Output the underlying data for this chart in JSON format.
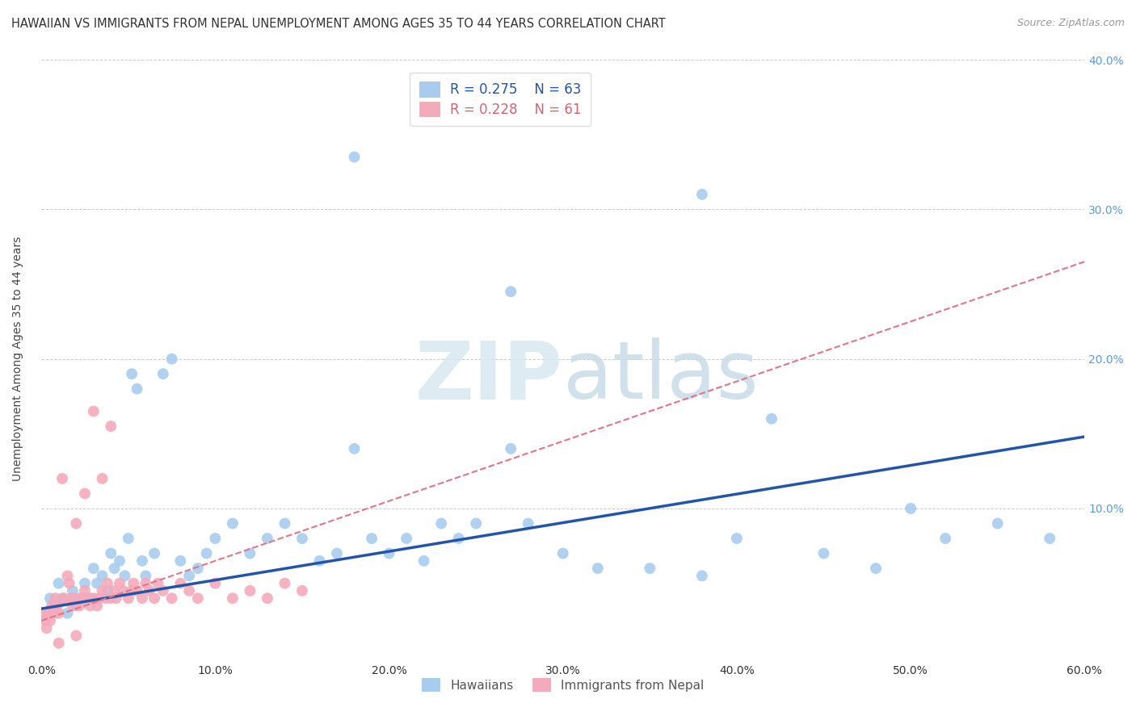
{
  "title": "HAWAIIAN VS IMMIGRANTS FROM NEPAL UNEMPLOYMENT AMONG AGES 35 TO 44 YEARS CORRELATION CHART",
  "source": "Source: ZipAtlas.com",
  "ylabel": "Unemployment Among Ages 35 to 44 years",
  "xlim": [
    0.0,
    0.6
  ],
  "ylim": [
    0.0,
    0.4
  ],
  "blue_color": "#A8CCEE",
  "pink_color": "#F4AABB",
  "blue_line_color": "#2255AA",
  "pink_line_color": "#DD7788",
  "legend_R_blue": "R = 0.275",
  "legend_N_blue": "N = 63",
  "legend_R_pink": "R = 0.228",
  "legend_N_pink": "N = 61",
  "legend_label_blue": "Hawaiians",
  "legend_label_pink": "Immigrants from Nepal",
  "watermark_zip": "ZIP",
  "watermark_atlas": "atlas",
  "background_color": "#FFFFFF",
  "grid_color": "#CCCCCC",
  "right_tick_color": "#5B9BD5",
  "blue_line_x0": 0.0,
  "blue_line_x1": 0.6,
  "blue_line_y0": 0.033,
  "blue_line_y1": 0.148,
  "pink_line_x0": 0.0,
  "pink_line_x1": 0.6,
  "pink_line_y0": 0.025,
  "pink_line_y1": 0.265,
  "hawaiians_x": [
    0.005,
    0.008,
    0.01,
    0.012,
    0.015,
    0.018,
    0.02,
    0.022,
    0.025,
    0.028,
    0.03,
    0.032,
    0.035,
    0.038,
    0.04,
    0.042,
    0.045,
    0.048,
    0.05,
    0.052,
    0.055,
    0.058,
    0.06,
    0.065,
    0.07,
    0.075,
    0.08,
    0.085,
    0.09,
    0.095,
    0.1,
    0.11,
    0.12,
    0.13,
    0.14,
    0.15,
    0.16,
    0.17,
    0.18,
    0.19,
    0.2,
    0.21,
    0.22,
    0.23,
    0.24,
    0.25,
    0.27,
    0.28,
    0.3,
    0.32,
    0.35,
    0.38,
    0.4,
    0.42,
    0.45,
    0.48,
    0.5,
    0.52,
    0.55,
    0.58,
    0.18,
    0.38,
    0.27
  ],
  "hawaiians_y": [
    0.04,
    0.035,
    0.05,
    0.04,
    0.03,
    0.045,
    0.035,
    0.04,
    0.05,
    0.04,
    0.06,
    0.05,
    0.055,
    0.045,
    0.07,
    0.06,
    0.065,
    0.055,
    0.08,
    0.19,
    0.18,
    0.065,
    0.055,
    0.07,
    0.19,
    0.2,
    0.065,
    0.055,
    0.06,
    0.07,
    0.08,
    0.09,
    0.07,
    0.08,
    0.09,
    0.08,
    0.065,
    0.07,
    0.14,
    0.08,
    0.07,
    0.08,
    0.065,
    0.09,
    0.08,
    0.09,
    0.14,
    0.09,
    0.07,
    0.06,
    0.06,
    0.055,
    0.08,
    0.16,
    0.07,
    0.06,
    0.1,
    0.08,
    0.09,
    0.08,
    0.335,
    0.31,
    0.245
  ],
  "nepal_x": [
    0.0,
    0.002,
    0.003,
    0.004,
    0.005,
    0.006,
    0.007,
    0.008,
    0.009,
    0.01,
    0.012,
    0.013,
    0.015,
    0.016,
    0.017,
    0.018,
    0.019,
    0.02,
    0.022,
    0.023,
    0.024,
    0.025,
    0.027,
    0.028,
    0.03,
    0.032,
    0.033,
    0.035,
    0.037,
    0.038,
    0.04,
    0.042,
    0.043,
    0.045,
    0.047,
    0.05,
    0.052,
    0.053,
    0.055,
    0.058,
    0.06,
    0.062,
    0.065,
    0.067,
    0.07,
    0.075,
    0.08,
    0.085,
    0.09,
    0.1,
    0.11,
    0.12,
    0.13,
    0.14,
    0.15,
    0.03,
    0.04,
    0.025,
    0.035,
    0.02,
    0.01
  ],
  "nepal_y": [
    0.03,
    0.025,
    0.02,
    0.03,
    0.025,
    0.035,
    0.03,
    0.04,
    0.035,
    0.03,
    0.12,
    0.04,
    0.055,
    0.05,
    0.04,
    0.035,
    0.04,
    0.09,
    0.035,
    0.04,
    0.04,
    0.045,
    0.04,
    0.035,
    0.04,
    0.035,
    0.04,
    0.045,
    0.04,
    0.05,
    0.04,
    0.045,
    0.04,
    0.05,
    0.045,
    0.04,
    0.045,
    0.05,
    0.045,
    0.04,
    0.05,
    0.045,
    0.04,
    0.05,
    0.045,
    0.04,
    0.05,
    0.045,
    0.04,
    0.05,
    0.04,
    0.045,
    0.04,
    0.05,
    0.045,
    0.165,
    0.155,
    0.11,
    0.12,
    0.015,
    0.01
  ]
}
